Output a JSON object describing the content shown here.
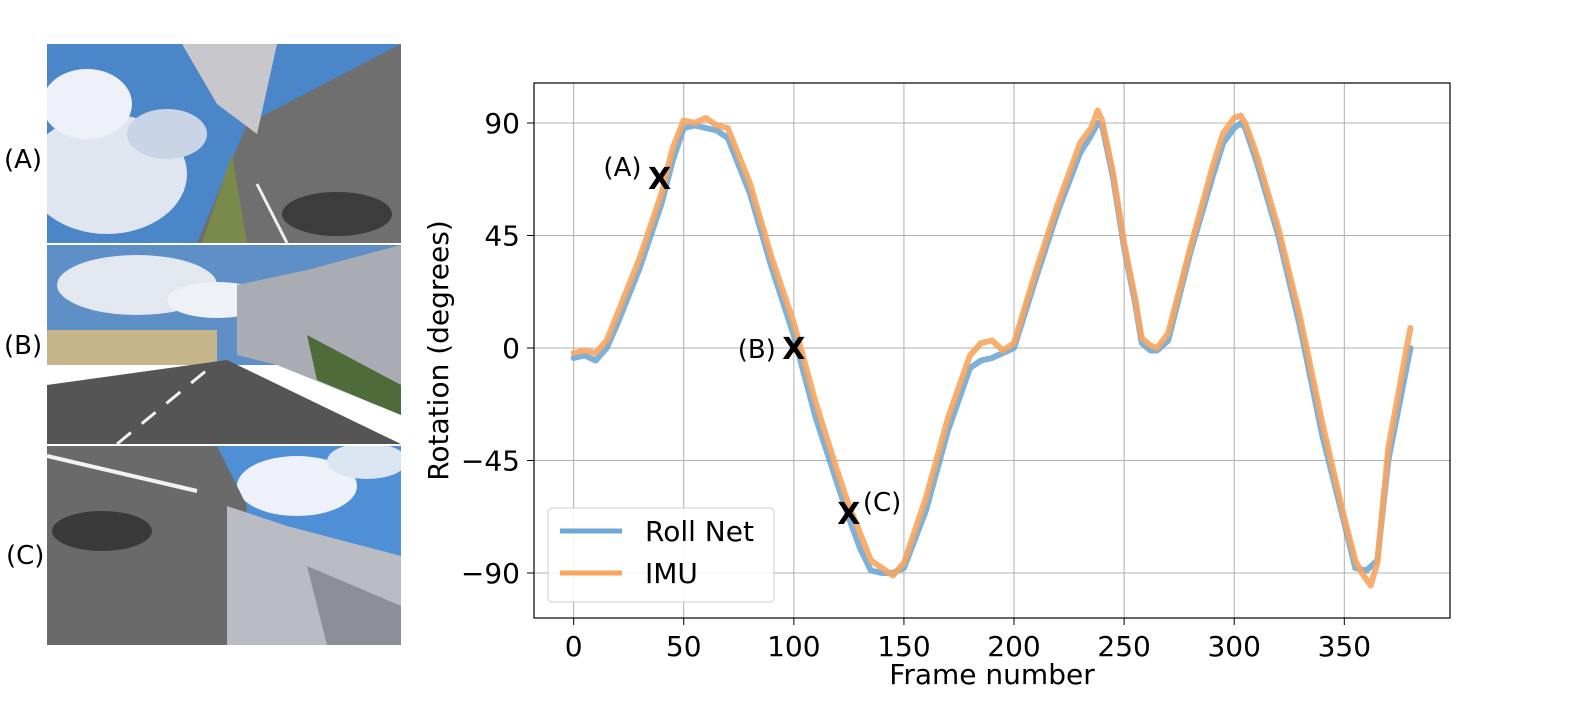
{
  "panels": [
    {
      "label": "(A)"
    },
    {
      "label": "(B)"
    },
    {
      "label": "(C)"
    }
  ],
  "chart_data": {
    "type": "line",
    "xlabel": "Frame number",
    "ylabel": "Rotation (degrees)",
    "xlim": [
      -18,
      398
    ],
    "ylim": [
      -108,
      106
    ],
    "xticks": [
      0,
      50,
      100,
      150,
      200,
      250,
      300,
      350
    ],
    "yticks": [
      90,
      45,
      0,
      -45,
      -90
    ],
    "ytick_labels": [
      "90",
      "45",
      "0",
      "−45",
      "−90"
    ],
    "grid": true,
    "legend_position": "lower-left",
    "series": [
      {
        "name": "Roll Net",
        "color": "#6fa8d6",
        "x": [
          0,
          5,
          10,
          15,
          20,
          30,
          40,
          45,
          50,
          55,
          60,
          65,
          70,
          80,
          90,
          100,
          110,
          120,
          125,
          130,
          135,
          140,
          145,
          150,
          160,
          170,
          180,
          185,
          190,
          195,
          200,
          210,
          220,
          230,
          235,
          238,
          240,
          245,
          250,
          255,
          258,
          262,
          265,
          270,
          280,
          290,
          295,
          300,
          303,
          305,
          310,
          320,
          330,
          340,
          350,
          355,
          360,
          365,
          370,
          380
        ],
        "y": [
          -4,
          -3,
          -5,
          0,
          10,
          32,
          58,
          75,
          88,
          89,
          88,
          87,
          84,
          62,
          32,
          5,
          -28,
          -55,
          -68,
          -80,
          -89,
          -90,
          -90,
          -88,
          -65,
          -33,
          -8,
          -5,
          -4,
          -2,
          0,
          28,
          55,
          78,
          85,
          90,
          89,
          68,
          40,
          18,
          2,
          -1,
          -1,
          3,
          38,
          68,
          82,
          88,
          90,
          88,
          75,
          45,
          8,
          -35,
          -70,
          -88,
          -89,
          -85,
          -45,
          0
        ]
      },
      {
        "name": "IMU",
        "color": "#f7a55f",
        "x": [
          0,
          5,
          10,
          15,
          20,
          30,
          40,
          45,
          50,
          55,
          60,
          65,
          70,
          80,
          90,
          100,
          110,
          120,
          125,
          130,
          135,
          140,
          145,
          150,
          160,
          170,
          180,
          185,
          190,
          195,
          200,
          210,
          220,
          230,
          235,
          238,
          240,
          245,
          250,
          255,
          258,
          262,
          265,
          270,
          280,
          290,
          295,
          300,
          303,
          305,
          310,
          320,
          330,
          340,
          350,
          355,
          358,
          362,
          365,
          370,
          380
        ],
        "y": [
          -2,
          -1,
          -2,
          3,
          14,
          36,
          62,
          80,
          91,
          90,
          92,
          89,
          88,
          66,
          36,
          10,
          -22,
          -50,
          -63,
          -74,
          -85,
          -88,
          -91,
          -86,
          -60,
          -28,
          -3,
          2,
          3,
          -1,
          2,
          31,
          58,
          82,
          88,
          95,
          91,
          70,
          42,
          20,
          4,
          1,
          0,
          6,
          40,
          72,
          86,
          92,
          93,
          90,
          78,
          48,
          12,
          -30,
          -68,
          -85,
          -90,
          -95,
          -86,
          -40,
          8
        ]
      }
    ],
    "annotations": [
      {
        "label": "(A)",
        "marker": "X",
        "x": 39,
        "y": 68
      },
      {
        "label": "(B)",
        "marker": "X",
        "x": 100,
        "y": 0
      },
      {
        "label": "(C)",
        "marker": "X",
        "x": 125,
        "y": -66
      }
    ]
  }
}
